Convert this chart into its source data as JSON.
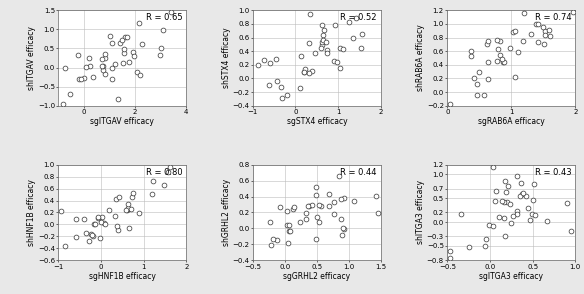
{
  "panels": [
    {
      "xlabel": "sgITGAV efficacy",
      "ylabel": "shITGAV efficacy",
      "R": "R = 0.65",
      "xlim": [
        -1,
        4
      ],
      "ylim": [
        -1,
        1.5
      ],
      "xticks": [
        0,
        2,
        4
      ],
      "yticks": [
        -1,
        -0.5,
        0,
        0.5,
        1,
        1.5
      ],
      "seed": 42,
      "n": 42
    },
    {
      "xlabel": "sgSTX4 efficacy",
      "ylabel": "shSTX4 efficacy",
      "R": "R = 0.52",
      "xlim": [
        -1,
        2
      ],
      "ylim": [
        -0.4,
        1
      ],
      "xticks": [
        -1,
        0,
        1,
        2
      ],
      "yticks": [
        -0.4,
        -0.2,
        0,
        0.2,
        0.4,
        0.6,
        0.8,
        1
      ],
      "seed": 55,
      "n": 40
    },
    {
      "xlabel": "sgRAB6A efficacy",
      "ylabel": "shRAB6A efficacy",
      "R": "R = 0.74",
      "xlim": [
        0,
        2
      ],
      "ylim": [
        -0.2,
        1.2
      ],
      "xticks": [
        0,
        1,
        2
      ],
      "yticks": [
        -0.2,
        0,
        0.2,
        0.4,
        0.6,
        0.8,
        1,
        1.2
      ],
      "seed": 66,
      "n": 38
    },
    {
      "xlabel": "sgHNF1B efficacy",
      "ylabel": "shHNF1B efficacy",
      "R": "R = 0.80",
      "xlim": [
        -1,
        2
      ],
      "ylim": [
        -0.6,
        1
      ],
      "xticks": [
        -1,
        0,
        1,
        2
      ],
      "yticks": [
        -0.6,
        -0.4,
        -0.2,
        0,
        0.2,
        0.4,
        0.6,
        0.8,
        1
      ],
      "seed": 77,
      "n": 40
    },
    {
      "xlabel": "sgGRHL2 efficacy",
      "ylabel": "shGRHL2 efficacy",
      "R": "R = 0.44",
      "xlim": [
        -0.5,
        1.5
      ],
      "ylim": [
        -0.4,
        0.8
      ],
      "xticks": [
        -0.5,
        0,
        0.5,
        1,
        1.5
      ],
      "yticks": [
        -0.4,
        -0.2,
        0,
        0.2,
        0.4,
        0.6,
        0.8
      ],
      "seed": 88,
      "n": 40
    },
    {
      "xlabel": "sgITGA3 efficacy",
      "ylabel": "shITGA3 efficacy",
      "R": "R = 0.43",
      "xlim": [
        -0.5,
        1
      ],
      "ylim": [
        -0.8,
        1.2
      ],
      "xticks": [
        -0.5,
        0,
        0.5,
        1
      ],
      "yticks": [
        -0.8,
        -0.5,
        -0.3,
        0,
        0.2,
        0.5,
        0.7,
        1.0,
        1.2
      ],
      "seed": 99,
      "n": 40
    }
  ],
  "bg_color": "#e8e8e8",
  "plot_bg": "#ffffff",
  "marker_facecolor": "white",
  "marker_edge": "#333333",
  "marker_size": 12,
  "font_size": 5.5,
  "tick_font_size": 5,
  "r_font_size": 6
}
